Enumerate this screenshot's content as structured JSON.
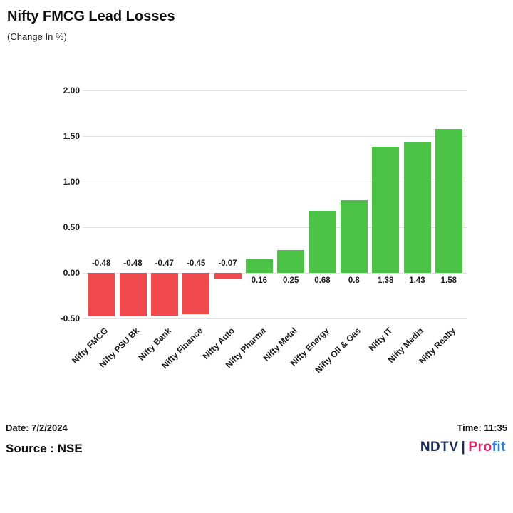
{
  "header": {
    "title": "Nifty FMCG Lead Losses",
    "subtitle": "(Change In %)"
  },
  "chart_data": {
    "type": "bar",
    "title": "Nifty FMCG Lead Losses",
    "subtitle": "(Change In %)",
    "xlabel": "",
    "ylabel": "",
    "categories": [
      "Nifty FMCG",
      "Nifty PSU Bk",
      "Nifty Bank",
      "Nifty Finance",
      "Nifty Auto",
      "Nifty Pharma",
      "Nifty Metal",
      "Nifty Energy",
      "Nifty Oil & Gas",
      "Nifty IT",
      "Nifty Media",
      "Nifty Realty"
    ],
    "values": [
      -0.48,
      -0.48,
      -0.47,
      -0.45,
      -0.07,
      0.16,
      0.25,
      0.68,
      0.8,
      1.38,
      1.43,
      1.58
    ],
    "value_labels": [
      "-0.48",
      "-0.48",
      "-0.47",
      "-0.45",
      "-0.07",
      "0.16",
      "0.25",
      "0.68",
      "0.8",
      "1.38",
      "1.43",
      "1.58"
    ],
    "y_ticks": [
      "2.00",
      "1.50",
      "1.00",
      "0.50",
      "0.00",
      "-0.50"
    ],
    "ylim": [
      -0.5,
      2.0
    ],
    "grid": true,
    "legend": false,
    "colors": {
      "positive": "#4cc247",
      "negative": "#f04a4e",
      "grid": "#e2e2e2",
      "text": "#1a1a1a"
    }
  },
  "footer": {
    "date_label": "Date: 7/2/2024",
    "time_label": "Time: 11:35",
    "source_label": "Source : NSE",
    "logo": {
      "ndtv": "NDTV",
      "separator": "|",
      "profit_pro": "Pro",
      "profit_fit": "fit",
      "colors": {
        "ndtv": "#1b2f5e",
        "separator": "#1b2f5e",
        "pro": "#e4256c",
        "fit": "#2a7de1"
      }
    }
  }
}
